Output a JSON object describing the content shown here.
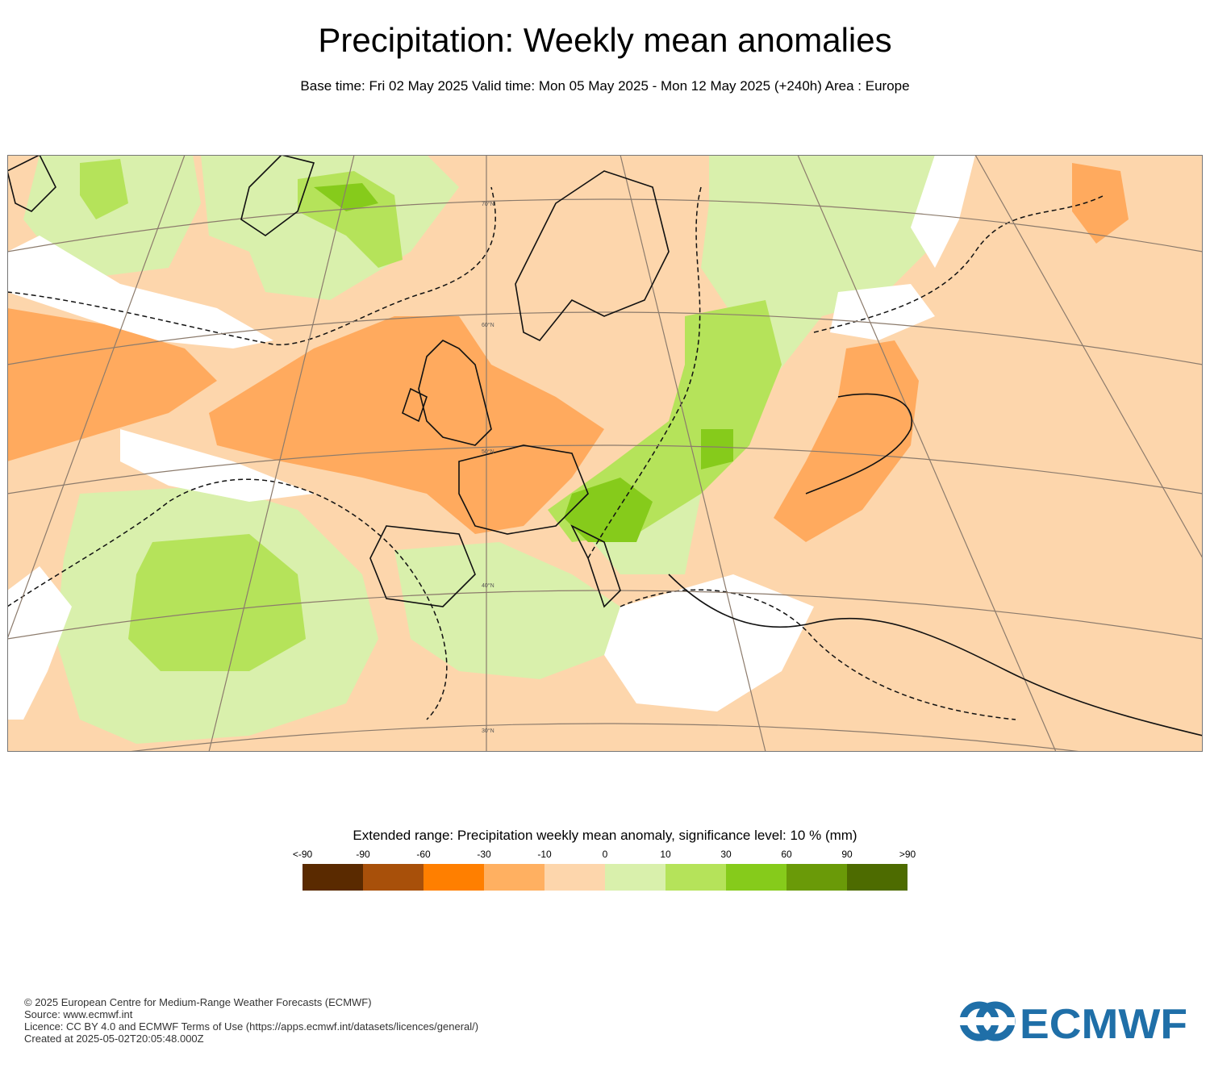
{
  "header": {
    "title": "Precipitation: Weekly mean anomalies",
    "subtitle": "Base time: Fri 02 May 2025 Valid time: Mon 05 May 2025 - Mon 12 May 2025 (+240h) Area : Europe"
  },
  "map": {
    "lat_labels": [
      "70°N",
      "60°N",
      "50°N",
      "40°N",
      "30°N"
    ],
    "colors": {
      "strong_dry": "#ffaa5e",
      "weak_dry": "#fdd6ac",
      "no_signal": "#ffffff",
      "weak_wet": "#d9f0ac",
      "strong_wet": "#b5e35a",
      "very_wet": "#86cb1b",
      "coast": "#111111",
      "graticule": "#8c7b6c"
    }
  },
  "legend": {
    "title": "Extended range: Precipitation weekly mean anomaly, significance level: 10 % (mm)",
    "labels": [
      "<-90",
      "-90",
      "-60",
      "-30",
      "-10",
      "0",
      "10",
      "30",
      "60",
      "90",
      ">90"
    ],
    "colors": [
      "#5a2a00",
      "#a8500a",
      "#ff7f00",
      "#ffb061",
      "#fdd6ac",
      "#d9f0ac",
      "#b5e35a",
      "#86cb1b",
      "#6a9a08",
      "#4d6b00"
    ]
  },
  "footer": {
    "line1": "© 2025 European Centre for Medium-Range Weather Forecasts (ECMWF)",
    "line2": "Source: www.ecmwf.int",
    "line3": "Licence: CC BY 4.0 and ECMWF Terms of Use (https://apps.ecmwf.int/datasets/licences/general/)",
    "line4": "Created at 2025-05-02T20:05:48.000Z"
  },
  "logo": {
    "text": "ECMWF",
    "color": "#1f6fa8"
  }
}
